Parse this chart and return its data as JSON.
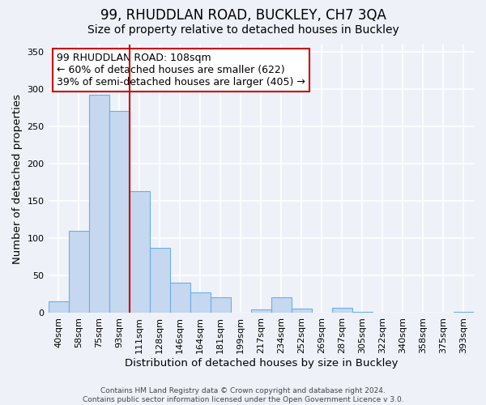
{
  "title": "99, RHUDDLAN ROAD, BUCKLEY, CH7 3QA",
  "subtitle": "Size of property relative to detached houses in Buckley",
  "xlabel": "Distribution of detached houses by size in Buckley",
  "ylabel": "Number of detached properties",
  "footer_line1": "Contains HM Land Registry data © Crown copyright and database right 2024.",
  "footer_line2": "Contains public sector information licensed under the Open Government Licence v 3.0.",
  "bin_labels": [
    "40sqm",
    "58sqm",
    "75sqm",
    "93sqm",
    "111sqm",
    "128sqm",
    "146sqm",
    "164sqm",
    "181sqm",
    "199sqm",
    "217sqm",
    "234sqm",
    "252sqm",
    "269sqm",
    "287sqm",
    "305sqm",
    "322sqm",
    "340sqm",
    "358sqm",
    "375sqm",
    "393sqm"
  ],
  "bar_values": [
    16,
    110,
    293,
    271,
    163,
    87,
    41,
    28,
    21,
    0,
    5,
    21,
    6,
    0,
    7,
    2,
    0,
    0,
    1,
    0,
    2
  ],
  "bar_color": "#c5d8f0",
  "bar_edge_color": "#6aaee8",
  "vline_x_index": 3.5,
  "vline_color": "#cc0000",
  "annotation_title": "99 RHUDDLAN ROAD: 108sqm",
  "annotation_line1": "← 60% of detached houses are smaller (622)",
  "annotation_line2": "39% of semi-detached houses are larger (405) →",
  "annotation_box_color": "white",
  "annotation_box_edge_color": "#cc0000",
  "ylim": [
    0,
    360
  ],
  "yticks": [
    0,
    50,
    100,
    150,
    200,
    250,
    300,
    350
  ],
  "background_color": "#eef2f8",
  "grid_color": "white",
  "title_fontsize": 12,
  "subtitle_fontsize": 10,
  "axis_label_fontsize": 9.5,
  "tick_fontsize": 8,
  "annotation_fontsize": 9
}
